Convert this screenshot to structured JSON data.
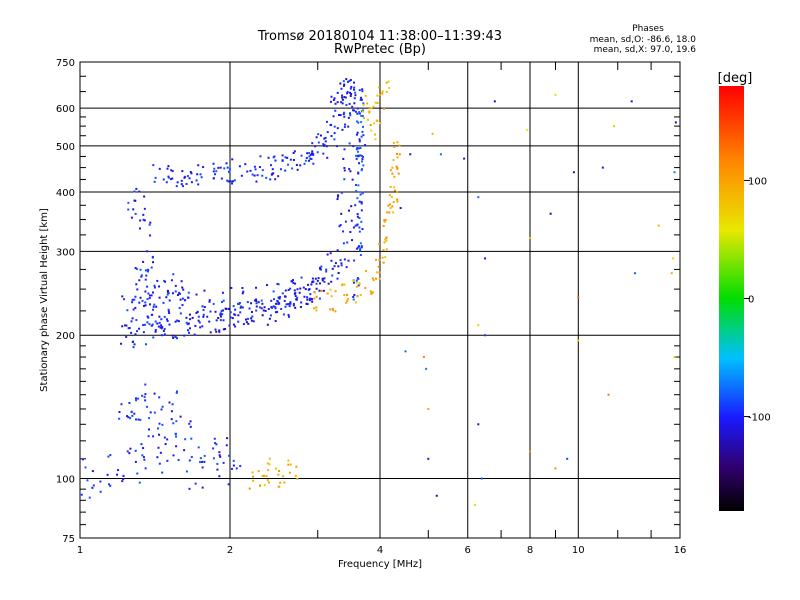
{
  "chart_data": {
    "type": "scatter",
    "title": "Tromsø 20180104  11:38:00–11:39:43",
    "subtitle": "RwPretec (Bp)",
    "xlabel": "Frequency [MHz]",
    "ylabel": "Stationary phase Virtual Height [km]",
    "x_scale": "log",
    "y_scale": "log",
    "xlim": [
      1,
      16
    ],
    "ylim": [
      75,
      750
    ],
    "x_ticks": [
      1,
      2,
      4,
      6,
      8,
      10,
      16
    ],
    "x_tick_labels": [
      "1",
      "2",
      "4",
      "6",
      "8",
      "10",
      "16"
    ],
    "y_ticks": [
      75,
      100,
      200,
      300,
      400,
      500,
      600,
      750
    ],
    "y_tick_labels": [
      "75",
      "100",
      "200",
      "300",
      "400",
      "500",
      "600",
      "750"
    ],
    "grid": true,
    "phase_stats": {
      "heading": "Phases",
      "line1": "mean, sd,O: -86.6, 18.0",
      "line2": "mean, sd,X:  97.0, 19.6"
    },
    "colorbar": {
      "label": "[deg]",
      "range": [
        -180,
        180
      ],
      "ticks": [
        100,
        0,
        -100
      ],
      "tick_labels": [
        "100",
        "0",
        "-100"
      ]
    },
    "traces": [
      {
        "kind": "o-upper",
        "phase": -100,
        "points": [
          [
            1.45,
            435
          ],
          [
            1.55,
            432
          ],
          [
            1.65,
            430
          ],
          [
            1.8,
            432
          ],
          [
            1.95,
            440
          ],
          [
            2.05,
            442
          ],
          [
            2.2,
            445
          ],
          [
            2.35,
            450
          ],
          [
            2.5,
            455
          ],
          [
            2.65,
            460
          ],
          [
            2.8,
            470
          ],
          [
            2.95,
            485
          ],
          [
            3.05,
            500
          ],
          [
            3.15,
            525
          ],
          [
            3.25,
            555
          ],
          [
            3.35,
            600
          ],
          [
            3.4,
            640
          ],
          [
            3.45,
            660
          ]
        ]
      },
      {
        "kind": "o-lower",
        "phase": -105,
        "points": [
          [
            1.25,
            200
          ],
          [
            1.3,
            203
          ],
          [
            1.4,
            206
          ],
          [
            1.5,
            208
          ],
          [
            1.6,
            210
          ],
          [
            1.7,
            212
          ],
          [
            1.8,
            214
          ],
          [
            1.9,
            215
          ],
          [
            2.0,
            217
          ],
          [
            2.1,
            219
          ],
          [
            2.2,
            221
          ],
          [
            2.3,
            223
          ],
          [
            2.4,
            226
          ],
          [
            2.5,
            229
          ],
          [
            2.6,
            232
          ],
          [
            2.7,
            236
          ],
          [
            2.8,
            240
          ],
          [
            2.9,
            245
          ],
          [
            3.0,
            252
          ],
          [
            3.1,
            262
          ],
          [
            3.2,
            275
          ],
          [
            3.3,
            295
          ],
          [
            3.4,
            330
          ],
          [
            3.45,
            380
          ],
          [
            3.5,
            450
          ],
          [
            3.52,
            520
          ],
          [
            3.5,
            600
          ],
          [
            3.48,
            650
          ]
        ]
      },
      {
        "kind": "o-band",
        "phase": -100,
        "points": [
          [
            1.25,
            230
          ],
          [
            1.4,
            232
          ],
          [
            1.6,
            234
          ],
          [
            1.8,
            236
          ],
          [
            2.0,
            238
          ],
          [
            2.2,
            240
          ],
          [
            2.4,
            243
          ],
          [
            2.6,
            246
          ],
          [
            2.8,
            250
          ]
        ]
      },
      {
        "kind": "o-spread",
        "phase": -100,
        "points": [
          [
            1.3,
            390
          ],
          [
            1.32,
            340
          ],
          [
            1.34,
            290
          ],
          [
            1.36,
            260
          ],
          [
            1.38,
            240
          ],
          [
            1.4,
            220
          ],
          [
            1.45,
            215
          ],
          [
            1.5,
            260
          ],
          [
            1.55,
            245
          ]
        ]
      },
      {
        "kind": "o-vertical",
        "phase": -90,
        "points": [
          [
            3.6,
            250
          ],
          [
            3.62,
            300
          ],
          [
            3.63,
            350
          ],
          [
            3.64,
            400
          ],
          [
            3.65,
            450
          ],
          [
            3.66,
            500
          ],
          [
            3.66,
            560
          ],
          [
            3.65,
            620
          ]
        ]
      },
      {
        "kind": "x-trace",
        "phase": 95,
        "points": [
          [
            3.0,
            236
          ],
          [
            3.2,
            238
          ],
          [
            3.4,
            242
          ],
          [
            3.6,
            248
          ],
          [
            3.8,
            258
          ],
          [
            3.95,
            275
          ],
          [
            4.05,
            300
          ],
          [
            4.15,
            330
          ],
          [
            4.2,
            360
          ],
          [
            4.25,
            400
          ],
          [
            4.28,
            450
          ],
          [
            4.3,
            480
          ]
        ]
      },
      {
        "kind": "x-upper",
        "phase": 90,
        "points": [
          [
            3.8,
            540
          ],
          [
            3.85,
            580
          ],
          [
            3.9,
            620
          ],
          [
            4.0,
            650
          ]
        ]
      },
      {
        "kind": "e-layer",
        "phase": -100,
        "points": [
          [
            1.02,
            100
          ],
          [
            1.1,
            102
          ],
          [
            1.2,
            104
          ],
          [
            1.3,
            108
          ],
          [
            1.4,
            112
          ],
          [
            1.5,
            116
          ],
          [
            1.6,
            120
          ],
          [
            1.7,
            105
          ],
          [
            1.8,
            115
          ],
          [
            1.9,
            110
          ],
          [
            2.0,
            105
          ]
        ]
      },
      {
        "kind": "e-layer-x",
        "phase": 95,
        "points": [
          [
            2.3,
            100
          ],
          [
            2.4,
            102
          ],
          [
            2.5,
            104
          ],
          [
            2.6,
            103
          ]
        ]
      },
      {
        "kind": "e-sporadic",
        "phase": -95,
        "points": [
          [
            1.25,
            135
          ],
          [
            1.3,
            140
          ],
          [
            1.35,
            150
          ],
          [
            1.4,
            130
          ],
          [
            1.5,
            145
          ],
          [
            1.6,
            128
          ]
        ]
      },
      {
        "kind": "noise",
        "phase": 0,
        "points": [
          [
            4.4,
            370
          ],
          [
            4.6,
            480
          ],
          [
            5.1,
            530
          ],
          [
            5.3,
            480
          ],
          [
            5.9,
            470
          ],
          [
            6.3,
            390
          ],
          [
            6.5,
            290
          ],
          [
            6.5,
            200
          ],
          [
            6.8,
            620
          ],
          [
            7.9,
            540
          ],
          [
            8.0,
            320
          ],
          [
            8.8,
            360
          ],
          [
            9.0,
            640
          ],
          [
            9.8,
            440
          ],
          [
            10.0,
            240
          ],
          [
            11.2,
            450
          ],
          [
            11.8,
            550
          ],
          [
            12.8,
            620
          ],
          [
            13.0,
            270
          ],
          [
            14.5,
            340
          ],
          [
            15.7,
            560
          ],
          [
            15.6,
            440
          ],
          [
            15.5,
            290
          ],
          [
            15.4,
            270
          ],
          [
            15.6,
            180
          ],
          [
            4.5,
            185
          ],
          [
            4.9,
            180
          ],
          [
            4.95,
            170
          ],
          [
            5.0,
            140
          ],
          [
            5.0,
            110
          ],
          [
            5.2,
            92
          ],
          [
            6.2,
            88
          ],
          [
            6.3,
            130
          ],
          [
            6.4,
            100
          ],
          [
            6.3,
            210
          ],
          [
            8.0,
            114
          ],
          [
            9.0,
            105
          ],
          [
            9.5,
            110
          ],
          [
            10.0,
            195
          ],
          [
            11.5,
            150
          ]
        ]
      }
    ]
  }
}
